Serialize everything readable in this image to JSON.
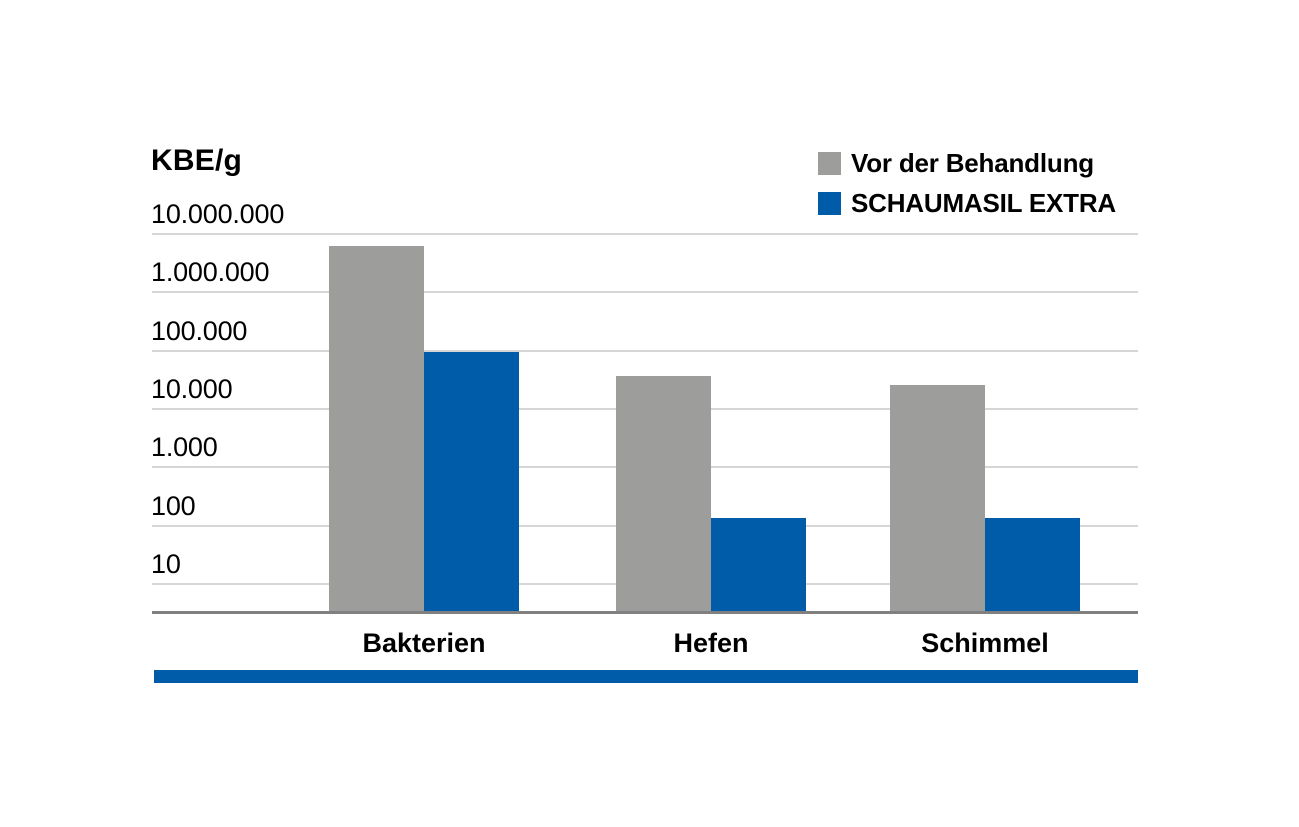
{
  "chart_data": {
    "type": "bar",
    "title": "",
    "ylabel": "KBE/g",
    "xlabel": "",
    "yscale": "log",
    "categories": [
      "Bakterien",
      "Hefen",
      "Schimmel"
    ],
    "series": [
      {
        "name": "Vor der Behandlung",
        "color": "#9d9d9c",
        "values": [
          6000000,
          35000,
          25000
        ]
      },
      {
        "name": "SCHAUMASIL EXTRA",
        "color": "#005ca9",
        "values": [
          90000,
          130,
          130
        ]
      }
    ],
    "y_ticks": [
      "10.000.000",
      "1.000.000",
      "100.000",
      "10.000",
      "1.000",
      "100",
      "10"
    ],
    "y_tick_values": [
      10000000,
      1000000,
      100000,
      10000,
      1000,
      100,
      10
    ],
    "ylim_log10": [
      0.485,
      7
    ],
    "grid": true,
    "legend_position": "top-right",
    "grid_color": "#d6d6d6",
    "axis_line_color": "#808080",
    "accent_stripe_color": "#005ca9"
  }
}
